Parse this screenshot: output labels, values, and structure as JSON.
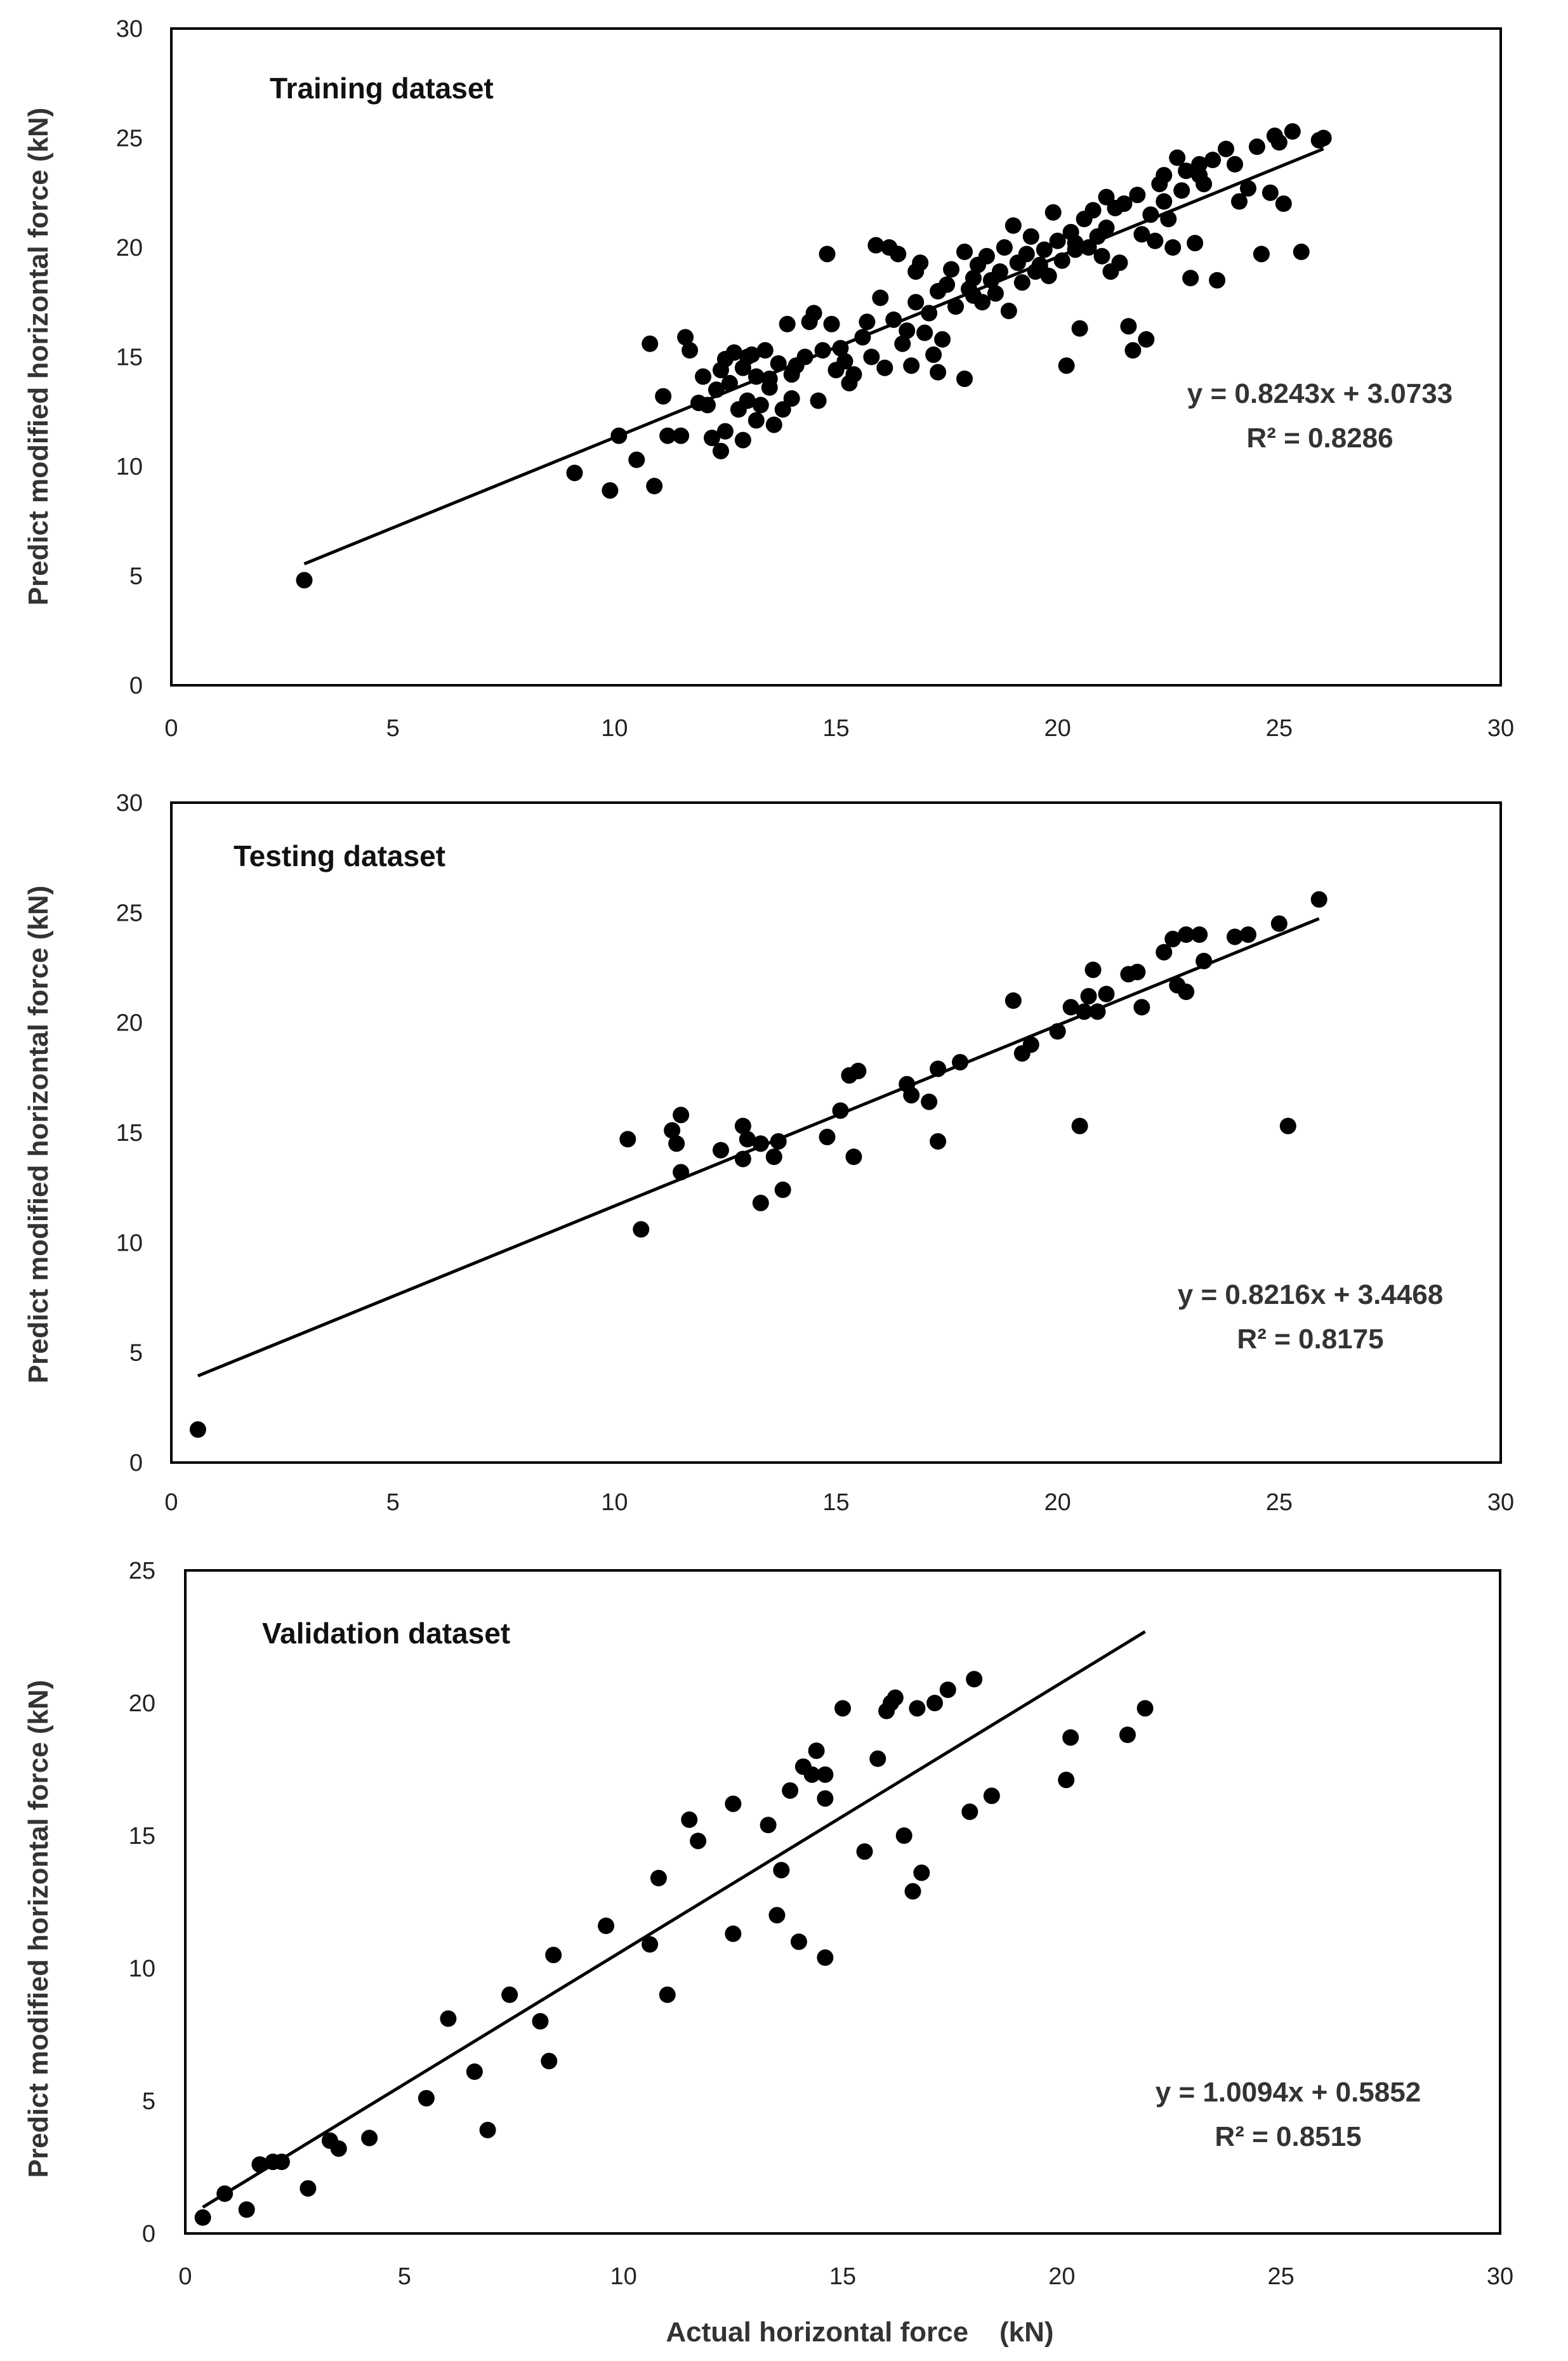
{
  "chart_data": [
    {
      "type": "scatter",
      "title": "Training dataset",
      "xlabel": "",
      "ylabel": "Predict modified horizontal force (kN)",
      "xlim": [
        0,
        30
      ],
      "ylim": [
        0,
        30
      ],
      "xticks": [
        0,
        5,
        10,
        15,
        20,
        25,
        30
      ],
      "yticks": [
        0,
        5,
        10,
        15,
        20,
        25,
        30
      ],
      "equation": "y = 0.8243x + 3.0733",
      "r2": "R² = 0.8286",
      "trendline": {
        "slope": 0.8243,
        "intercept": 3.0733,
        "x_range": [
          3.0,
          26.0
        ]
      },
      "points": [
        [
          3.0,
          4.8
        ],
        [
          9.1,
          9.7
        ],
        [
          9.9,
          8.9
        ],
        [
          10.1,
          11.4
        ],
        [
          10.5,
          10.3
        ],
        [
          10.8,
          15.6
        ],
        [
          10.9,
          9.1
        ],
        [
          11.1,
          13.2
        ],
        [
          11.2,
          11.4
        ],
        [
          11.5,
          11.4
        ],
        [
          11.6,
          15.9
        ],
        [
          11.7,
          15.3
        ],
        [
          11.9,
          12.9
        ],
        [
          12.0,
          14.1
        ],
        [
          12.1,
          12.8
        ],
        [
          12.2,
          11.3
        ],
        [
          12.3,
          13.5
        ],
        [
          12.4,
          10.7
        ],
        [
          12.5,
          14.9
        ],
        [
          12.5,
          11.6
        ],
        [
          12.6,
          13.8
        ],
        [
          12.7,
          15.2
        ],
        [
          12.8,
          12.6
        ],
        [
          12.9,
          14.5
        ],
        [
          12.9,
          11.2
        ],
        [
          13.0,
          13.0
        ],
        [
          13.1,
          15.1
        ],
        [
          13.2,
          12.1
        ],
        [
          13.2,
          14.1
        ],
        [
          13.3,
          12.8
        ],
        [
          13.4,
          15.3
        ],
        [
          13.5,
          13.6
        ],
        [
          13.6,
          11.9
        ],
        [
          13.7,
          14.7
        ],
        [
          13.8,
          12.6
        ],
        [
          13.9,
          16.5
        ],
        [
          14.0,
          13.1
        ],
        [
          14.1,
          14.6
        ],
        [
          14.3,
          15.0
        ],
        [
          14.4,
          16.6
        ],
        [
          14.5,
          17.0
        ],
        [
          14.6,
          13.0
        ],
        [
          14.7,
          15.3
        ],
        [
          14.8,
          19.7
        ],
        [
          14.9,
          16.5
        ],
        [
          15.0,
          14.4
        ],
        [
          15.1,
          15.4
        ],
        [
          15.2,
          14.8
        ],
        [
          15.3,
          13.8
        ],
        [
          15.4,
          14.2
        ],
        [
          15.6,
          15.9
        ],
        [
          15.7,
          16.6
        ],
        [
          15.8,
          15.0
        ],
        [
          15.9,
          20.1
        ],
        [
          16.0,
          17.7
        ],
        [
          16.1,
          14.5
        ],
        [
          16.2,
          20.0
        ],
        [
          16.3,
          16.7
        ],
        [
          16.4,
          19.7
        ],
        [
          16.5,
          15.6
        ],
        [
          16.6,
          16.2
        ],
        [
          16.7,
          14.6
        ],
        [
          16.8,
          18.9
        ],
        [
          16.9,
          19.3
        ],
        [
          17.0,
          16.1
        ],
        [
          17.1,
          17.0
        ],
        [
          17.2,
          15.1
        ],
        [
          17.3,
          14.3
        ],
        [
          17.4,
          15.8
        ],
        [
          17.5,
          18.3
        ],
        [
          17.6,
          19.0
        ],
        [
          17.7,
          17.3
        ],
        [
          17.9,
          14.0
        ],
        [
          17.9,
          19.8
        ],
        [
          18.0,
          18.1
        ],
        [
          18.1,
          17.8
        ],
        [
          18.2,
          19.2
        ],
        [
          18.3,
          17.5
        ],
        [
          18.4,
          19.6
        ],
        [
          18.5,
          18.5
        ],
        [
          18.6,
          17.9
        ],
        [
          18.7,
          18.9
        ],
        [
          18.8,
          20.0
        ],
        [
          18.9,
          17.1
        ],
        [
          19.0,
          21.0
        ],
        [
          19.1,
          19.3
        ],
        [
          19.2,
          18.4
        ],
        [
          19.3,
          19.7
        ],
        [
          19.4,
          20.5
        ],
        [
          19.5,
          18.9
        ],
        [
          19.6,
          19.2
        ],
        [
          19.7,
          19.9
        ],
        [
          19.8,
          18.7
        ],
        [
          19.9,
          21.6
        ],
        [
          20.0,
          20.3
        ],
        [
          20.1,
          19.4
        ],
        [
          20.2,
          14.6
        ],
        [
          20.3,
          20.7
        ],
        [
          20.4,
          19.9
        ],
        [
          20.5,
          16.3
        ],
        [
          20.6,
          21.3
        ],
        [
          20.7,
          20.0
        ],
        [
          20.8,
          21.7
        ],
        [
          20.9,
          20.5
        ],
        [
          21.0,
          19.6
        ],
        [
          21.1,
          22.3
        ],
        [
          21.2,
          18.9
        ],
        [
          21.3,
          21.8
        ],
        [
          21.4,
          19.3
        ],
        [
          21.5,
          22.0
        ],
        [
          21.6,
          16.4
        ],
        [
          21.7,
          15.3
        ],
        [
          21.8,
          22.4
        ],
        [
          21.9,
          20.6
        ],
        [
          22.0,
          15.8
        ],
        [
          22.1,
          21.5
        ],
        [
          22.2,
          20.3
        ],
        [
          22.3,
          22.9
        ],
        [
          22.4,
          23.3
        ],
        [
          22.5,
          21.3
        ],
        [
          22.6,
          20.0
        ],
        [
          22.7,
          24.1
        ],
        [
          22.8,
          22.6
        ],
        [
          22.9,
          23.5
        ],
        [
          23.0,
          18.6
        ],
        [
          23.1,
          20.2
        ],
        [
          23.2,
          23.8
        ],
        [
          23.3,
          22.9
        ],
        [
          23.5,
          24.0
        ],
        [
          23.6,
          18.5
        ],
        [
          23.8,
          24.5
        ],
        [
          24.0,
          23.8
        ],
        [
          24.1,
          22.1
        ],
        [
          24.3,
          22.7
        ],
        [
          24.5,
          24.6
        ],
        [
          24.6,
          19.7
        ],
        [
          24.8,
          22.5
        ],
        [
          24.9,
          25.1
        ],
        [
          25.0,
          24.8
        ],
        [
          25.1,
          22.0
        ],
        [
          25.3,
          25.3
        ],
        [
          25.5,
          19.8
        ],
        [
          25.9,
          24.9
        ],
        [
          26.0,
          25.0
        ],
        [
          12.4,
          14.4
        ],
        [
          13.0,
          15.0
        ],
        [
          13.5,
          14.0
        ],
        [
          14.0,
          14.2
        ],
        [
          16.8,
          17.5
        ],
        [
          17.3,
          18.0
        ],
        [
          18.1,
          18.6
        ],
        [
          19.6,
          19.1
        ],
        [
          20.4,
          20.2
        ],
        [
          21.1,
          20.9
        ],
        [
          22.4,
          22.1
        ],
        [
          23.2,
          23.3
        ]
      ]
    },
    {
      "type": "scatter",
      "title": "Testing dataset",
      "xlabel": "",
      "ylabel": "Predict modified horizontal force (kN)",
      "xlim": [
        0,
        30
      ],
      "ylim": [
        0,
        30
      ],
      "xticks": [
        0,
        5,
        10,
        15,
        20,
        25,
        30
      ],
      "yticks": [
        0,
        5,
        10,
        15,
        20,
        25,
        30
      ],
      "equation": "y = 0.8216x + 3.4468",
      "r2": "R² = 0.8175",
      "trendline": {
        "slope": 0.8216,
        "intercept": 3.4468,
        "x_range": [
          0.6,
          25.9
        ]
      },
      "points": [
        [
          0.6,
          1.5
        ],
        [
          10.3,
          14.7
        ],
        [
          10.6,
          10.6
        ],
        [
          11.3,
          15.1
        ],
        [
          11.4,
          14.5
        ],
        [
          11.5,
          13.2
        ],
        [
          11.5,
          15.8
        ],
        [
          12.4,
          14.2
        ],
        [
          12.9,
          15.3
        ],
        [
          12.9,
          13.8
        ],
        [
          13.0,
          14.7
        ],
        [
          13.3,
          14.5
        ],
        [
          13.3,
          11.8
        ],
        [
          13.6,
          13.9
        ],
        [
          13.7,
          14.6
        ],
        [
          13.8,
          12.4
        ],
        [
          14.8,
          14.8
        ],
        [
          15.1,
          16.0
        ],
        [
          15.3,
          17.6
        ],
        [
          15.4,
          13.9
        ],
        [
          15.5,
          17.8
        ],
        [
          16.6,
          17.2
        ],
        [
          16.7,
          16.7
        ],
        [
          17.1,
          16.4
        ],
        [
          17.3,
          14.6
        ],
        [
          17.3,
          17.9
        ],
        [
          17.8,
          18.2
        ],
        [
          19.0,
          21.0
        ],
        [
          19.2,
          18.6
        ],
        [
          19.4,
          19.0
        ],
        [
          20.0,
          19.6
        ],
        [
          20.3,
          20.7
        ],
        [
          20.5,
          15.3
        ],
        [
          20.6,
          20.5
        ],
        [
          20.7,
          21.2
        ],
        [
          20.8,
          22.4
        ],
        [
          20.9,
          20.5
        ],
        [
          21.1,
          21.3
        ],
        [
          21.6,
          22.2
        ],
        [
          21.8,
          22.3
        ],
        [
          21.9,
          20.7
        ],
        [
          22.4,
          23.2
        ],
        [
          22.6,
          23.8
        ],
        [
          22.7,
          21.7
        ],
        [
          22.9,
          24.0
        ],
        [
          22.9,
          21.4
        ],
        [
          23.2,
          24.0
        ],
        [
          23.3,
          22.8
        ],
        [
          24.0,
          23.9
        ],
        [
          24.3,
          24.0
        ],
        [
          25.0,
          24.5
        ],
        [
          25.2,
          15.3
        ],
        [
          25.9,
          25.6
        ]
      ]
    },
    {
      "type": "scatter",
      "title": "Validation dataset",
      "xlabel": "Actual horizontal force    (kN)",
      "ylabel": "Predict modified horizontal force (kN)",
      "xlim": [
        0,
        30
      ],
      "ylim": [
        0,
        25
      ],
      "xticks": [
        0,
        5,
        10,
        15,
        20,
        25,
        30
      ],
      "yticks": [
        0,
        5,
        10,
        15,
        20,
        25
      ],
      "equation": "y = 1.0094x + 0.5852",
      "r2": "R² = 0.8515",
      "trendline": {
        "slope": 1.0094,
        "intercept": 0.5852,
        "x_range": [
          0.4,
          21.9
        ]
      },
      "points": [
        [
          0.4,
          0.6
        ],
        [
          0.9,
          1.5
        ],
        [
          1.4,
          0.9
        ],
        [
          1.7,
          2.6
        ],
        [
          2.0,
          2.7
        ],
        [
          2.2,
          2.7
        ],
        [
          2.8,
          1.7
        ],
        [
          3.3,
          3.5
        ],
        [
          3.5,
          3.2
        ],
        [
          4.2,
          3.6
        ],
        [
          5.5,
          5.1
        ],
        [
          6.0,
          8.1
        ],
        [
          6.6,
          6.1
        ],
        [
          6.9,
          3.9
        ],
        [
          7.4,
          9.0
        ],
        [
          8.1,
          8.0
        ],
        [
          8.3,
          6.5
        ],
        [
          8.4,
          10.5
        ],
        [
          9.6,
          11.6
        ],
        [
          10.6,
          10.9
        ],
        [
          10.8,
          13.4
        ],
        [
          11.0,
          9.0
        ],
        [
          11.5,
          15.6
        ],
        [
          11.7,
          14.8
        ],
        [
          12.5,
          11.3
        ],
        [
          12.5,
          16.2
        ],
        [
          13.3,
          15.4
        ],
        [
          13.5,
          12.0
        ],
        [
          13.6,
          13.7
        ],
        [
          13.8,
          16.7
        ],
        [
          14.0,
          11.0
        ],
        [
          14.1,
          17.6
        ],
        [
          14.3,
          17.3
        ],
        [
          14.4,
          18.2
        ],
        [
          14.6,
          10.4
        ],
        [
          14.6,
          16.4
        ],
        [
          14.6,
          17.3
        ],
        [
          15.0,
          19.8
        ],
        [
          15.5,
          14.4
        ],
        [
          15.8,
          17.9
        ],
        [
          16.0,
          19.7
        ],
        [
          16.1,
          20.0
        ],
        [
          16.2,
          20.2
        ],
        [
          16.4,
          15.0
        ],
        [
          16.6,
          12.9
        ],
        [
          16.7,
          19.8
        ],
        [
          16.8,
          13.6
        ],
        [
          17.1,
          20.0
        ],
        [
          17.4,
          20.5
        ],
        [
          17.9,
          15.9
        ],
        [
          18.0,
          20.9
        ],
        [
          18.4,
          16.5
        ],
        [
          20.1,
          17.1
        ],
        [
          20.2,
          18.7
        ],
        [
          21.5,
          18.8
        ],
        [
          21.9,
          19.8
        ]
      ]
    }
  ]
}
